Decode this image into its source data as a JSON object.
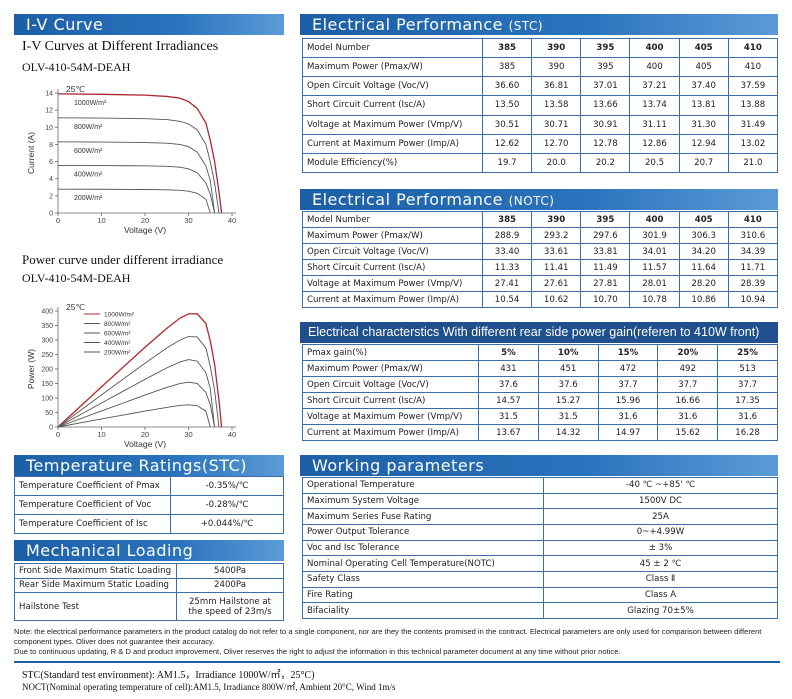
{
  "chart_data": [
    {
      "type": "line",
      "section": "I-V Curve",
      "title": "I-V Curves at Different Irradiances",
      "subtitle": "OLV-410-54M-DEAH",
      "annotation": "25℃",
      "x_label": "Voltage (V)",
      "y_label": "Current (A)",
      "x": [
        0,
        10,
        20,
        25,
        28,
        30,
        32,
        34,
        35,
        36,
        37,
        37.6
      ],
      "xlim": [
        0,
        40
      ],
      "xticks": [
        0,
        10,
        20,
        30,
        40
      ],
      "ylim": [
        0,
        14
      ],
      "yticks": [
        0,
        2,
        4,
        6,
        8,
        10,
        12,
        14
      ],
      "legend": "on-curve",
      "series": [
        {
          "name": "1000W/m²",
          "color": "#b0282d",
          "values": [
            13.9,
            13.85,
            13.75,
            13.6,
            13.4,
            13.0,
            12.2,
            10.5,
            8.5,
            6.0,
            2.5,
            0
          ]
        },
        {
          "name": "800W/m²",
          "color": "#555555",
          "values": [
            11.1,
            11.08,
            11.0,
            10.9,
            10.7,
            10.4,
            9.7,
            8.0,
            6.0,
            3.5,
            0,
            null
          ]
        },
        {
          "name": "600W/m²",
          "color": "#555555",
          "values": [
            8.3,
            8.28,
            8.22,
            8.15,
            8.0,
            7.75,
            7.1,
            5.5,
            3.8,
            0,
            null,
            null
          ]
        },
        {
          "name": "400W/m²",
          "color": "#555555",
          "values": [
            5.55,
            5.53,
            5.5,
            5.45,
            5.35,
            5.15,
            4.7,
            3.5,
            2.2,
            0,
            null,
            null
          ]
        },
        {
          "name": "200W/m²",
          "color": "#555555",
          "values": [
            2.78,
            2.77,
            2.74,
            2.7,
            2.65,
            2.55,
            2.3,
            1.6,
            0,
            null,
            null,
            null
          ]
        }
      ]
    },
    {
      "type": "line",
      "title": "Power curve under different irradiance",
      "subtitle": "OLV-410-54M-DEAH",
      "annotation": "25℃",
      "x_label": "Voltage (V)",
      "y_label": "Power (W)",
      "x": [
        0,
        10,
        20,
        25,
        28,
        30,
        32,
        34,
        35,
        36,
        37,
        37.6
      ],
      "xlim": [
        0,
        40
      ],
      "xticks": [
        0,
        10,
        20,
        30,
        40
      ],
      "ylim": [
        0,
        400
      ],
      "yticks": [
        0,
        50,
        100,
        150,
        200,
        250,
        300,
        350,
        400
      ],
      "legend": "upper-left",
      "series": [
        {
          "name": "1000W/m²",
          "color": "#b0282d",
          "values": [
            0,
            138.5,
            275,
            340,
            375,
            390,
            390.4,
            357,
            297.5,
            216,
            92.5,
            0
          ]
        },
        {
          "name": "800W/m²",
          "color": "#555555",
          "values": [
            0,
            110.8,
            220,
            272.5,
            299.6,
            312,
            310.4,
            272,
            210,
            126,
            0,
            null
          ]
        },
        {
          "name": "600W/m²",
          "color": "#555555",
          "values": [
            0,
            82.8,
            164.4,
            203.8,
            224,
            232.5,
            227.2,
            187,
            133,
            0,
            null,
            null
          ]
        },
        {
          "name": "400W/m²",
          "color": "#555555",
          "values": [
            0,
            55.3,
            110,
            136.3,
            149.8,
            154.5,
            150.4,
            119,
            77,
            0,
            null,
            null
          ]
        },
        {
          "name": "200W/m²",
          "color": "#555555",
          "values": [
            0,
            27.7,
            54.8,
            67.5,
            74.2,
            76.5,
            73.6,
            54.4,
            0,
            null,
            null,
            null
          ]
        }
      ]
    }
  ],
  "stc": {
    "title": "Electrical Performance",
    "tag": "(STC)",
    "rows": [
      [
        "Model Number",
        "385",
        "390",
        "395",
        "400",
        "405",
        "410"
      ],
      [
        "Maximum Power (Pmax/W)",
        "385",
        "390",
        "395",
        "400",
        "405",
        "410"
      ],
      [
        "Open Circuit Voltage (Voc/V)",
        "36.60",
        "36.81",
        "37.01",
        "37.21",
        "37.40",
        "37.59"
      ],
      [
        "Short Circuit Current (Isc/A)",
        "13.50",
        "13.58",
        "13.66",
        "13.74",
        "13.81",
        "13.88"
      ],
      [
        "Voltage at Maximum Power (Vmp/V)",
        "30.51",
        "30.71",
        "30.91",
        "31.11",
        "31.30",
        "31.49"
      ],
      [
        "Current at Maximum Power (Imp/A)",
        "12.62",
        "12.70",
        "12.78",
        "12.86",
        "12.94",
        "13.02"
      ],
      [
        "Module Efficiency(%)",
        "19.7",
        "20.0",
        "20.2",
        "20.5",
        "20.7",
        "21.0"
      ]
    ]
  },
  "notc": {
    "title": "Electrical Performance",
    "tag": "(NOTC)",
    "rows": [
      [
        "Model Number",
        "385",
        "390",
        "395",
        "400",
        "405",
        "410"
      ],
      [
        "Maximum Power (Pmax/W)",
        "288.9",
        "293.2",
        "297.6",
        "301.9",
        "306.3",
        "310.6"
      ],
      [
        "Open Circuit Voltage (Voc/V)",
        "33.40",
        "33.61",
        "33.81",
        "34.01",
        "34.20",
        "34.39"
      ],
      [
        "Short Circuit Current (Isc/A)",
        "11.33",
        "11.41",
        "11.49",
        "11.57",
        "11.64",
        "11.71"
      ],
      [
        "Voltage at Maximum Power (Vmp/V)",
        "27.41",
        "27.61",
        "27.81",
        "28.01",
        "28.20",
        "28.39"
      ],
      [
        "Current at Maximum Power (Imp/A)",
        "10.54",
        "10.62",
        "10.70",
        "10.78",
        "10.86",
        "10.94"
      ]
    ]
  },
  "rear": {
    "title": "Electrical characterstics With different rear side power gain(referen to 410W front)",
    "rows": [
      [
        "Pmax gain(%)",
        "5%",
        "10%",
        "15%",
        "20%",
        "25%"
      ],
      [
        "Maximum Power (Pmax/W)",
        "431",
        "451",
        "472",
        "492",
        "513"
      ],
      [
        "Open Circuit Voltage (Voc/V)",
        "37.6",
        "37.6",
        "37.7",
        "37.7",
        "37.7"
      ],
      [
        "Short Circuit Current (Isc/A)",
        "14.57",
        "15.27",
        "15.96",
        "16.66",
        "17.35"
      ],
      [
        "Voltage at Maximum Power (Vmp/V)",
        "31.5",
        "31.5",
        "31.6",
        "31.6",
        "31.6"
      ],
      [
        "Current at Maximum Power (Imp/A)",
        "13.67",
        "14.32",
        "14.97",
        "15.62",
        "16.28"
      ]
    ]
  },
  "temperature": {
    "title": "Temperature Ratings(STC)",
    "rows": [
      [
        "Temperature Coefficient of Pmax",
        "-0.35%/℃"
      ],
      [
        "Temperature Coefficient of Voc",
        "-0.28%/℃"
      ],
      [
        "Temperature Coefficient of Isc",
        "+0.044%/℃"
      ]
    ]
  },
  "mechanical": {
    "title": "Mechanical Loading",
    "rows": [
      [
        "Front Side Maximum Static Loading",
        "5400Pa"
      ],
      [
        "Rear Side Maximum Static Loading",
        "2400Pa"
      ],
      [
        "Hailstone Test",
        "25mm Hailstone at the speed of 23m/s"
      ]
    ]
  },
  "working": {
    "title": "Working parameters",
    "rows": [
      [
        "Operational Temperature",
        "-40 ℃ ~+85' ℃"
      ],
      [
        "Maximum System Voltage",
        "1500V DC"
      ],
      [
        "Maximum Series Fuse Rating",
        "25A"
      ],
      [
        "Power Output Tolerance",
        "0~+4.99W"
      ],
      [
        "Voc and Isc Tolerance",
        "± 3%"
      ],
      [
        "Nominal Operating Cell Temperature(NOTC)",
        "45 ± 2 ℃"
      ],
      [
        "Safety Class",
        "Class Ⅱ"
      ],
      [
        "Fire Rating",
        "Class A"
      ],
      [
        "Bifaciality",
        "Glazing 70±5%"
      ]
    ]
  },
  "notes": [
    "Note: the electrical performance parameters in the product catalog do not refer to a single component, nor are they the contents promised in the contract. Electrical parameters are only used for comparison between different component types. Oliver does not guarantee their accuracy.",
    "Due to continuous updating, R & D and product improvement, Oliver reserves the right to adjust the information in this technical parameter document at any time without prior notice."
  ],
  "footer": [
    "STC(Standard test environment): AM1.5，Irradiance 1000W/㎡，25°C)",
    "NOCT(Nominal operating temperature of cell):AM1.5,  Irradiance 800W/㎡,  Ambient 20°C,  Wind 1m/s"
  ]
}
